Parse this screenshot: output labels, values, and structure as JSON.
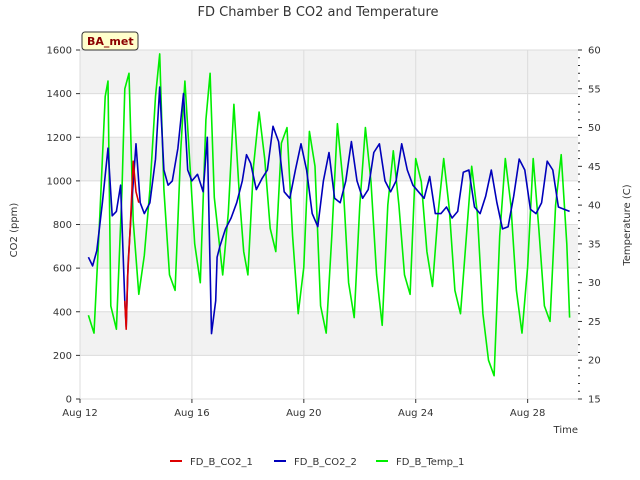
{
  "chart_data": {
    "type": "line",
    "title": "FD Chamber B CO2 and Temperature",
    "xlabel": "Time",
    "ylabel": "CO2 (ppm)",
    "y2label": "Temperature (C)",
    "badge": "BA_met",
    "x_ticks": [
      "Aug 12",
      "Aug 16",
      "Aug 20",
      "Aug 24",
      "Aug 28"
    ],
    "x_tick_days": [
      12,
      16,
      20,
      24,
      28
    ],
    "xlim": [
      12,
      29.8
    ],
    "ylim": [
      0,
      1600
    ],
    "y_ticks": [
      "0",
      "200",
      "400",
      "600",
      "800",
      "1000",
      "1200",
      "1400",
      "1600"
    ],
    "y2lim": [
      15,
      60
    ],
    "y2_ticks": [
      "15",
      "20",
      "25",
      "30",
      "35",
      "40",
      "45",
      "50",
      "55",
      "60"
    ],
    "grid": true,
    "legend_position": "bottom",
    "colors": {
      "co2_1": "#dd0000",
      "co2_2": "#0000bb",
      "temp_1": "#00ee00",
      "band": "#f2f2f2",
      "grid": "#dcdcdc"
    },
    "series": [
      {
        "name": "FD_B_CO2_1",
        "axis": "left",
        "x": [
          13.6,
          13.65,
          13.7,
          13.8,
          13.9,
          14.0,
          14.1
        ],
        "y": [
          450,
          320,
          560,
          800,
          1090,
          950,
          900
        ]
      },
      {
        "name": "FD_B_CO2_2",
        "axis": "left",
        "x": [
          12.3,
          12.45,
          12.6,
          12.8,
          13.0,
          13.15,
          13.3,
          13.45,
          13.6,
          13.65,
          13.72,
          13.85,
          14.0,
          14.15,
          14.3,
          14.5,
          14.7,
          14.85,
          15.0,
          15.15,
          15.3,
          15.5,
          15.7,
          15.85,
          16.0,
          16.2,
          16.4,
          16.55,
          16.7,
          16.85,
          16.9,
          17.0,
          17.2,
          17.4,
          17.6,
          17.8,
          17.95,
          18.1,
          18.3,
          18.5,
          18.7,
          18.9,
          19.1,
          19.3,
          19.5,
          19.7,
          19.9,
          20.1,
          20.3,
          20.5,
          20.7,
          20.9,
          21.1,
          21.3,
          21.5,
          21.7,
          21.9,
          22.1,
          22.3,
          22.5,
          22.7,
          22.9,
          23.1,
          23.3,
          23.5,
          23.7,
          23.9,
          24.1,
          24.3,
          24.5,
          24.7,
          24.9,
          25.1,
          25.3,
          25.5,
          25.7,
          25.9,
          26.1,
          26.3,
          26.5,
          26.7,
          26.9,
          27.1,
          27.3,
          27.5,
          27.7,
          27.9,
          28.1,
          28.3,
          28.5,
          28.7,
          28.9,
          29.1,
          29.3,
          29.5
        ],
        "y": [
          650,
          610,
          680,
          900,
          1150,
          840,
          860,
          980,
          450,
          330,
          620,
          900,
          1170,
          900,
          850,
          900,
          1100,
          1430,
          1050,
          980,
          1000,
          1150,
          1400,
          1050,
          1000,
          1030,
          950,
          1200,
          300,
          450,
          650,
          700,
          780,
          830,
          900,
          1000,
          1120,
          1080,
          960,
          1010,
          1050,
          1250,
          1180,
          950,
          920,
          1050,
          1170,
          1050,
          850,
          790,
          1000,
          1130,
          920,
          900,
          1000,
          1180,
          1000,
          920,
          960,
          1130,
          1170,
          1000,
          950,
          1000,
          1170,
          1050,
          980,
          950,
          920,
          1020,
          850,
          850,
          880,
          830,
          860,
          1040,
          1050,
          880,
          850,
          930,
          1050,
          900,
          780,
          790,
          930,
          1100,
          1050,
          870,
          850,
          900,
          1090,
          1050,
          880,
          870,
          860
        ]
      },
      {
        "name": "FD_B_Temp_1",
        "axis": "right",
        "x": [
          12.3,
          12.5,
          12.7,
          12.9,
          13.0,
          13.1,
          13.3,
          13.5,
          13.6,
          13.75,
          13.9,
          14.1,
          14.3,
          14.5,
          14.7,
          14.85,
          15.0,
          15.2,
          15.4,
          15.6,
          15.75,
          15.9,
          16.1,
          16.3,
          16.5,
          16.65,
          16.8,
          16.95,
          17.1,
          17.3,
          17.5,
          17.7,
          17.85,
          18.0,
          18.2,
          18.4,
          18.6,
          18.8,
          19.0,
          19.2,
          19.4,
          19.6,
          19.8,
          20.0,
          20.2,
          20.4,
          20.6,
          20.8,
          21.0,
          21.2,
          21.4,
          21.6,
          21.8,
          22.0,
          22.2,
          22.4,
          22.6,
          22.8,
          23.0,
          23.2,
          23.4,
          23.6,
          23.8,
          24.0,
          24.2,
          24.4,
          24.6,
          24.8,
          25.0,
          25.2,
          25.4,
          25.6,
          25.8,
          26.0,
          26.2,
          26.4,
          26.6,
          26.8,
          27.0,
          27.2,
          27.4,
          27.6,
          27.8,
          28.0,
          28.2,
          28.4,
          28.6,
          28.8,
          29.0,
          29.2,
          29.4,
          29.5
        ],
        "y": [
          25.8,
          23.5,
          38.0,
          54.0,
          56.0,
          27.0,
          24.0,
          42.0,
          55.0,
          57.0,
          38.0,
          28.5,
          33.5,
          42.0,
          54.0,
          59.5,
          42.0,
          31.0,
          29.0,
          47.0,
          56.0,
          47.0,
          35.0,
          30.0,
          51.0,
          57.0,
          41.0,
          36.0,
          31.0,
          39.0,
          53.0,
          41.0,
          34.0,
          31.0,
          45.0,
          52.0,
          46.0,
          37.0,
          34.0,
          48.0,
          50.0,
          36.0,
          26.0,
          32.0,
          49.5,
          45.0,
          27.0,
          23.5,
          36.0,
          50.5,
          43.0,
          30.0,
          25.5,
          40.0,
          50.0,
          43.0,
          31.0,
          24.5,
          40.0,
          47.0,
          40.0,
          31.0,
          28.5,
          46.0,
          43.0,
          34.0,
          29.5,
          39.0,
          46.0,
          39.5,
          29.0,
          26.0,
          35.5,
          45.0,
          39.0,
          26.0,
          20.0,
          18.0,
          36.0,
          46.0,
          40.0,
          29.0,
          23.5,
          32.0,
          46.0,
          37.0,
          27.0,
          25.0,
          40.0,
          46.5,
          35.0,
          25.5
        ]
      }
    ]
  }
}
